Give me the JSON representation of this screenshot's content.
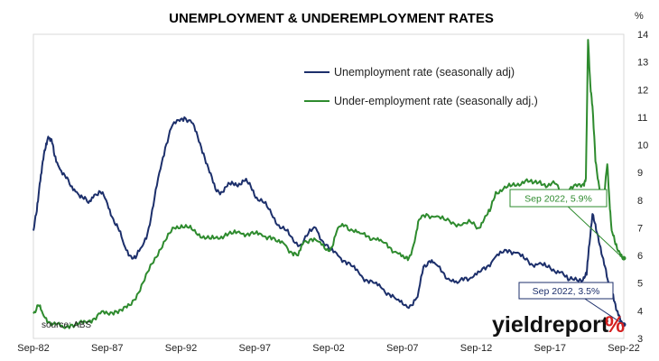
{
  "colors": {
    "unemployment": "#1c2f6b",
    "underemployment": "#2e8b2e",
    "brand_accent": "#d42020",
    "frame": "#d9d9d9"
  },
  "chart_data": {
    "type": "line",
    "title": "UNEMPLOYMENT & UNDEREMPLOYMENT RATES",
    "y_unit": "%",
    "ylim": [
      3,
      14
    ],
    "yticks": [
      3,
      4,
      5,
      6,
      7,
      8,
      9,
      10,
      11,
      12,
      13,
      14
    ],
    "xlim": [
      1982.67,
      2022.67
    ],
    "xticks": [
      {
        "x": 1982.67,
        "label": "Sep-82"
      },
      {
        "x": 1987.67,
        "label": "Sep-87"
      },
      {
        "x": 1992.67,
        "label": "Sep-92"
      },
      {
        "x": 1997.67,
        "label": "Sep-97"
      },
      {
        "x": 2002.67,
        "label": "Sep-02"
      },
      {
        "x": 2007.67,
        "label": "Sep-07"
      },
      {
        "x": 2012.67,
        "label": "Sep-12"
      },
      {
        "x": 2017.67,
        "label": "Sep-17"
      },
      {
        "x": 2022.67,
        "label": "Sep-22"
      }
    ],
    "grid": false,
    "legend_position": "top-center",
    "series": [
      {
        "name": "Unemployment rate (seasonally adj)",
        "color_key": "unemployment",
        "points": [
          [
            1982.67,
            6.9
          ],
          [
            1982.9,
            7.6
          ],
          [
            1983.1,
            8.6
          ],
          [
            1983.3,
            9.4
          ],
          [
            1983.5,
            9.9
          ],
          [
            1983.67,
            10.3
          ],
          [
            1983.9,
            10.2
          ],
          [
            1984.1,
            9.6
          ],
          [
            1984.4,
            9.2
          ],
          [
            1984.8,
            8.9
          ],
          [
            1985.2,
            8.5
          ],
          [
            1985.6,
            8.3
          ],
          [
            1986.0,
            8.1
          ],
          [
            1986.4,
            7.9
          ],
          [
            1986.8,
            8.2
          ],
          [
            1987.2,
            8.3
          ],
          [
            1987.6,
            8.0
          ],
          [
            1988.0,
            7.4
          ],
          [
            1988.4,
            7.0
          ],
          [
            1988.8,
            6.4
          ],
          [
            1989.2,
            6.0
          ],
          [
            1989.6,
            5.9
          ],
          [
            1990.0,
            6.3
          ],
          [
            1990.4,
            6.8
          ],
          [
            1990.8,
            7.8
          ],
          [
            1991.2,
            9.0
          ],
          [
            1991.6,
            9.9
          ],
          [
            1992.0,
            10.6
          ],
          [
            1992.5,
            10.9
          ],
          [
            1992.9,
            11.0
          ],
          [
            1993.4,
            10.8
          ],
          [
            1993.8,
            10.3
          ],
          [
            1994.2,
            9.7
          ],
          [
            1994.6,
            9.0
          ],
          [
            1995.0,
            8.4
          ],
          [
            1995.4,
            8.3
          ],
          [
            1995.8,
            8.5
          ],
          [
            1996.2,
            8.6
          ],
          [
            1996.6,
            8.6
          ],
          [
            1997.0,
            8.7
          ],
          [
            1997.4,
            8.5
          ],
          [
            1997.8,
            8.1
          ],
          [
            1998.3,
            7.9
          ],
          [
            1998.8,
            7.5
          ],
          [
            1999.3,
            7.1
          ],
          [
            1999.8,
            6.9
          ],
          [
            2000.3,
            6.5
          ],
          [
            2000.8,
            6.4
          ],
          [
            2001.3,
            6.8
          ],
          [
            2001.8,
            7.0
          ],
          [
            2002.3,
            6.5
          ],
          [
            2002.8,
            6.2
          ],
          [
            2003.3,
            6.0
          ],
          [
            2003.8,
            5.8
          ],
          [
            2004.3,
            5.6
          ],
          [
            2004.8,
            5.3
          ],
          [
            2005.3,
            5.1
          ],
          [
            2005.8,
            5.0
          ],
          [
            2006.3,
            4.8
          ],
          [
            2006.8,
            4.6
          ],
          [
            2007.3,
            4.4
          ],
          [
            2007.8,
            4.2
          ],
          [
            2008.3,
            4.2
          ],
          [
            2008.7,
            4.5
          ],
          [
            2009.1,
            5.6
          ],
          [
            2009.5,
            5.8
          ],
          [
            2009.9,
            5.7
          ],
          [
            2010.4,
            5.4
          ],
          [
            2010.9,
            5.1
          ],
          [
            2011.4,
            5.0
          ],
          [
            2011.9,
            5.2
          ],
          [
            2012.4,
            5.2
          ],
          [
            2012.9,
            5.4
          ],
          [
            2013.4,
            5.6
          ],
          [
            2013.9,
            5.9
          ],
          [
            2014.4,
            6.1
          ],
          [
            2014.9,
            6.2
          ],
          [
            2015.4,
            6.1
          ],
          [
            2015.9,
            5.9
          ],
          [
            2016.4,
            5.7
          ],
          [
            2016.9,
            5.7
          ],
          [
            2017.4,
            5.6
          ],
          [
            2017.9,
            5.5
          ],
          [
            2018.4,
            5.4
          ],
          [
            2018.9,
            5.1
          ],
          [
            2019.4,
            5.2
          ],
          [
            2019.9,
            5.1
          ],
          [
            2020.15,
            5.3
          ],
          [
            2020.3,
            6.3
          ],
          [
            2020.55,
            7.5
          ],
          [
            2020.8,
            6.9
          ],
          [
            2021.1,
            6.3
          ],
          [
            2021.4,
            5.6
          ],
          [
            2021.7,
            4.7
          ],
          [
            2021.95,
            4.6
          ],
          [
            2022.2,
            4.0
          ],
          [
            2022.45,
            3.6
          ],
          [
            2022.67,
            3.5
          ]
        ]
      },
      {
        "name": "Under-employment rate (seasonally adj.)",
        "color_key": "underemployment",
        "points": [
          [
            1982.67,
            3.9
          ],
          [
            1983.0,
            4.2
          ],
          [
            1983.3,
            3.9
          ],
          [
            1983.7,
            3.6
          ],
          [
            1984.2,
            3.5
          ],
          [
            1984.7,
            3.4
          ],
          [
            1985.2,
            3.5
          ],
          [
            1985.7,
            3.5
          ],
          [
            1986.2,
            3.6
          ],
          [
            1986.7,
            3.7
          ],
          [
            1987.2,
            3.9
          ],
          [
            1987.7,
            3.9
          ],
          [
            1988.2,
            4.0
          ],
          [
            1988.7,
            4.0
          ],
          [
            1989.2,
            4.2
          ],
          [
            1989.7,
            4.6
          ],
          [
            1990.2,
            5.1
          ],
          [
            1990.7,
            5.7
          ],
          [
            1991.2,
            6.2
          ],
          [
            1991.7,
            6.6
          ],
          [
            1992.2,
            7.0
          ],
          [
            1992.7,
            7.1
          ],
          [
            1993.2,
            7.0
          ],
          [
            1993.7,
            6.8
          ],
          [
            1994.2,
            6.7
          ],
          [
            1994.7,
            6.6
          ],
          [
            1995.2,
            6.6
          ],
          [
            1995.7,
            6.8
          ],
          [
            1996.2,
            6.8
          ],
          [
            1996.7,
            6.8
          ],
          [
            1997.2,
            6.8
          ],
          [
            1997.7,
            6.8
          ],
          [
            1998.2,
            6.7
          ],
          [
            1998.7,
            6.7
          ],
          [
            1999.2,
            6.5
          ],
          [
            1999.7,
            6.4
          ],
          [
            2000.2,
            6.1
          ],
          [
            2000.6,
            6.0
          ],
          [
            2001.0,
            6.5
          ],
          [
            2001.5,
            6.6
          ],
          [
            2002.0,
            6.5
          ],
          [
            2002.5,
            6.2
          ],
          [
            2002.9,
            6.3
          ],
          [
            2003.3,
            7.0
          ],
          [
            2003.8,
            7.1
          ],
          [
            2004.3,
            6.9
          ],
          [
            2004.8,
            6.8
          ],
          [
            2005.3,
            6.7
          ],
          [
            2005.8,
            6.6
          ],
          [
            2006.3,
            6.5
          ],
          [
            2006.8,
            6.3
          ],
          [
            2007.3,
            6.1
          ],
          [
            2007.8,
            5.9
          ],
          [
            2008.1,
            5.9
          ],
          [
            2008.5,
            6.5
          ],
          [
            2008.8,
            7.3
          ],
          [
            2009.3,
            7.5
          ],
          [
            2009.9,
            7.4
          ],
          [
            2010.5,
            7.3
          ],
          [
            2011.1,
            7.2
          ],
          [
            2011.7,
            7.1
          ],
          [
            2012.3,
            7.2
          ],
          [
            2012.8,
            7.0
          ],
          [
            2013.2,
            7.3
          ],
          [
            2013.6,
            7.6
          ],
          [
            2014.0,
            8.3
          ],
          [
            2014.5,
            8.4
          ],
          [
            2015.0,
            8.5
          ],
          [
            2015.5,
            8.6
          ],
          [
            2016.0,
            8.7
          ],
          [
            2016.5,
            8.6
          ],
          [
            2017.0,
            8.7
          ],
          [
            2017.5,
            8.5
          ],
          [
            2018.0,
            8.6
          ],
          [
            2018.5,
            8.3
          ],
          [
            2019.0,
            8.4
          ],
          [
            2019.5,
            8.5
          ],
          [
            2019.95,
            8.6
          ],
          [
            2020.1,
            8.8
          ],
          [
            2020.25,
            13.8
          ],
          [
            2020.4,
            12.2
          ],
          [
            2020.55,
            11.4
          ],
          [
            2020.75,
            9.4
          ],
          [
            2021.0,
            8.5
          ],
          [
            2021.3,
            7.9
          ],
          [
            2021.55,
            9.3
          ],
          [
            2021.7,
            8.0
          ],
          [
            2021.85,
            6.9
          ],
          [
            2022.1,
            6.4
          ],
          [
            2022.4,
            6.1
          ],
          [
            2022.67,
            5.9
          ]
        ]
      }
    ],
    "annotations": [
      {
        "label": "Sep 2022, 5.9%",
        "x": 2022.67,
        "y": 5.9,
        "color_key": "underemployment"
      },
      {
        "label": "Sep 2022, 3.5%",
        "x": 2022.67,
        "y": 3.5,
        "color_key": "unemployment"
      }
    ],
    "source": "source: ABS"
  },
  "branding": {
    "text": "yieldreport",
    "symbol": "%"
  }
}
